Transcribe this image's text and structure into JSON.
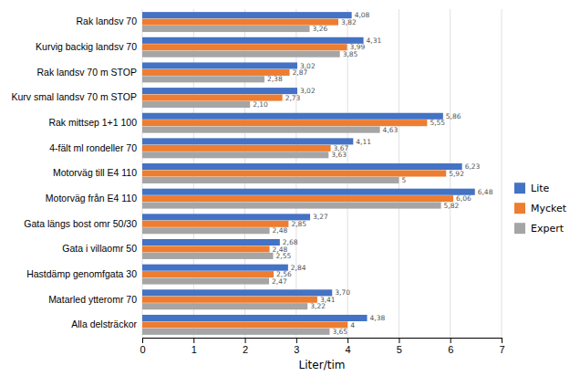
{
  "chart_data": {
    "type": "bar",
    "orientation": "horizontal",
    "categories": [
      "Rak landsv 70",
      "Kurvig backig landsv 70",
      "Rak landsv 70 m STOP",
      "Kurv smal landsv 70 m STOP",
      "Rak mittsep 1+1 100",
      "4-fält ml rondeller 70",
      "Motorväg till E4 110",
      "Motorväg från E4 110",
      "Gata längs bost omr 50/30",
      "Gata i villaomr 50",
      "Hastdämp genomfgata 30",
      "Matarled ytteromr 70",
      "Alla delsträckor"
    ],
    "series": [
      {
        "name": "Lite",
        "color": "#4472C4",
        "values": [
          4.08,
          4.31,
          3.02,
          3.02,
          5.86,
          4.11,
          6.23,
          6.48,
          3.27,
          2.68,
          2.84,
          3.7,
          4.38
        ],
        "value_labels": [
          "4,08",
          "4,31",
          "3,02",
          "3,02",
          "5,86",
          "4,11",
          "6,23",
          "6,48",
          "3,27",
          "2,68",
          "2,84",
          "3,70",
          "4,38"
        ]
      },
      {
        "name": "Mycket",
        "color": "#ED7D31",
        "values": [
          3.82,
          3.99,
          2.87,
          2.73,
          5.55,
          3.67,
          5.92,
          6.06,
          2.85,
          2.48,
          2.56,
          3.41,
          4.0
        ],
        "value_labels": [
          "3,82",
          "3,99",
          "2,87",
          "2,73",
          "5,55",
          "3,67",
          "5,92",
          "6,06",
          "2,85",
          "2,48",
          "2,56",
          "3,41",
          "4"
        ]
      },
      {
        "name": "Expert",
        "color": "#A5A5A5",
        "values": [
          3.26,
          3.85,
          2.38,
          2.1,
          4.63,
          3.63,
          5.0,
          5.82,
          2.48,
          2.55,
          2.47,
          3.22,
          3.65
        ],
        "value_labels": [
          "3,26",
          "3,85",
          "2,38",
          "2,10",
          "4,63",
          "3,63",
          "5",
          "5,82",
          "2,48",
          "2,55",
          "2,47",
          "3,22",
          "3,65"
        ]
      }
    ],
    "xlabel": "Liter/tim",
    "xlim": [
      0,
      7
    ],
    "xticks": [
      0,
      1,
      2,
      3,
      4,
      5,
      6,
      7
    ],
    "grid": true,
    "legend": "right",
    "data_labels": true
  }
}
